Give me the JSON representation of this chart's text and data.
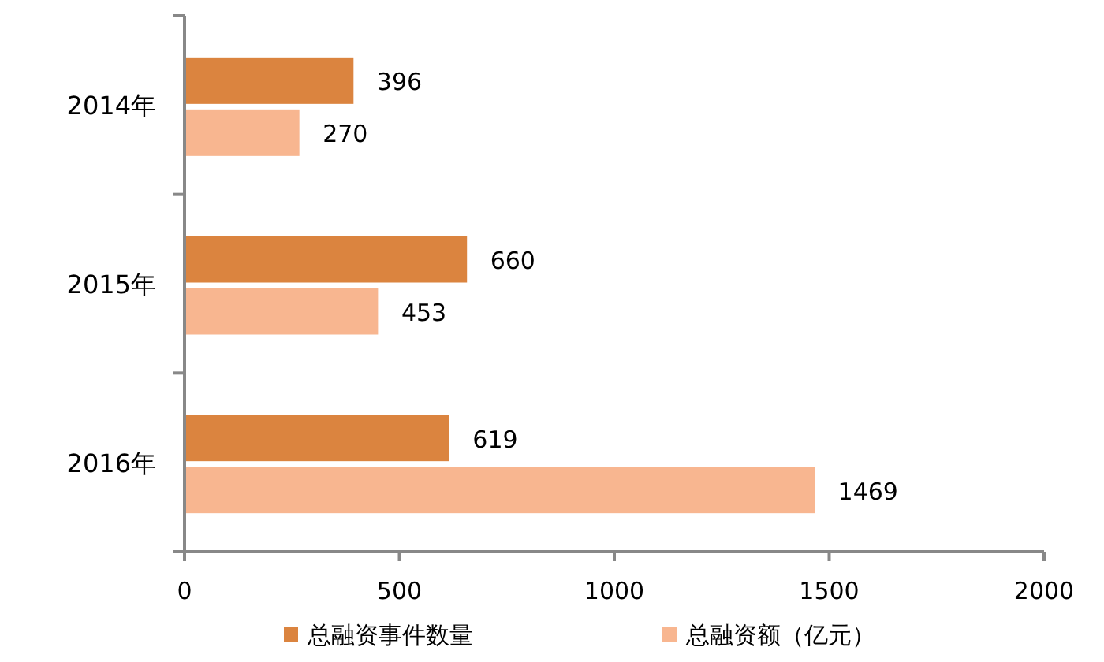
{
  "chart_data": {
    "type": "bar",
    "orientation": "horizontal",
    "categories": [
      "2014年",
      "2015年",
      "2016年"
    ],
    "series": [
      {
        "name": "总融资事件数量",
        "color": "#db843f",
        "values": [
          396,
          660,
          619
        ]
      },
      {
        "name": "总融资额（亿元）",
        "color": "#f8b690",
        "values": [
          270,
          453,
          1469
        ]
      }
    ],
    "xlim": [
      0,
      2000
    ],
    "xticks": [
      0,
      500,
      1000,
      1500,
      2000
    ],
    "data_labels": true,
    "grid": false,
    "legend": "bottom"
  }
}
